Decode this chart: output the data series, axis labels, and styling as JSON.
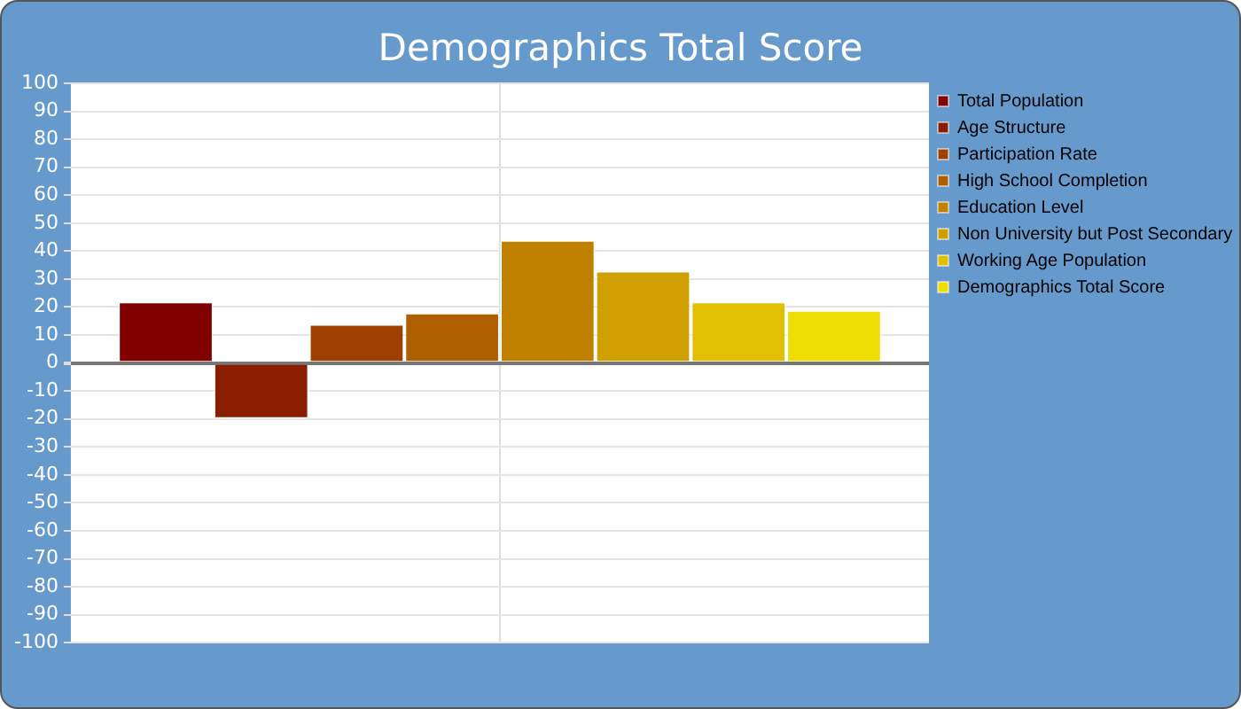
{
  "chart_data": {
    "type": "bar",
    "title": "Demographics Total Score",
    "categories": [
      null
    ],
    "series": [
      {
        "name": "Total Population",
        "color": "#800000",
        "values": [
          22
        ]
      },
      {
        "name": "Age Structure",
        "color": "#8b1e00",
        "values": [
          -20
        ]
      },
      {
        "name": "Participation Rate",
        "color": "#a04000",
        "values": [
          14
        ]
      },
      {
        "name": "High School Completion",
        "color": "#b05f00",
        "values": [
          18
        ]
      },
      {
        "name": "Education Level",
        "color": "#c08000",
        "values": [
          44
        ]
      },
      {
        "name": "Non University but Post Secondary",
        "color": "#d0a000",
        "values": [
          33
        ]
      },
      {
        "name": "Working Age Population",
        "color": "#e0c000",
        "values": [
          22
        ]
      },
      {
        "name": "Demographics Total Score",
        "color": "#eedd00",
        "values": [
          19
        ]
      }
    ],
    "ylim": [
      -100,
      100
    ],
    "yticks": [
      -100,
      -90,
      -80,
      -70,
      -60,
      -50,
      -40,
      -30,
      -20,
      -10,
      0,
      10,
      20,
      30,
      40,
      50,
      60,
      70,
      80,
      90,
      100
    ],
    "grid": true,
    "legend": "top right"
  }
}
